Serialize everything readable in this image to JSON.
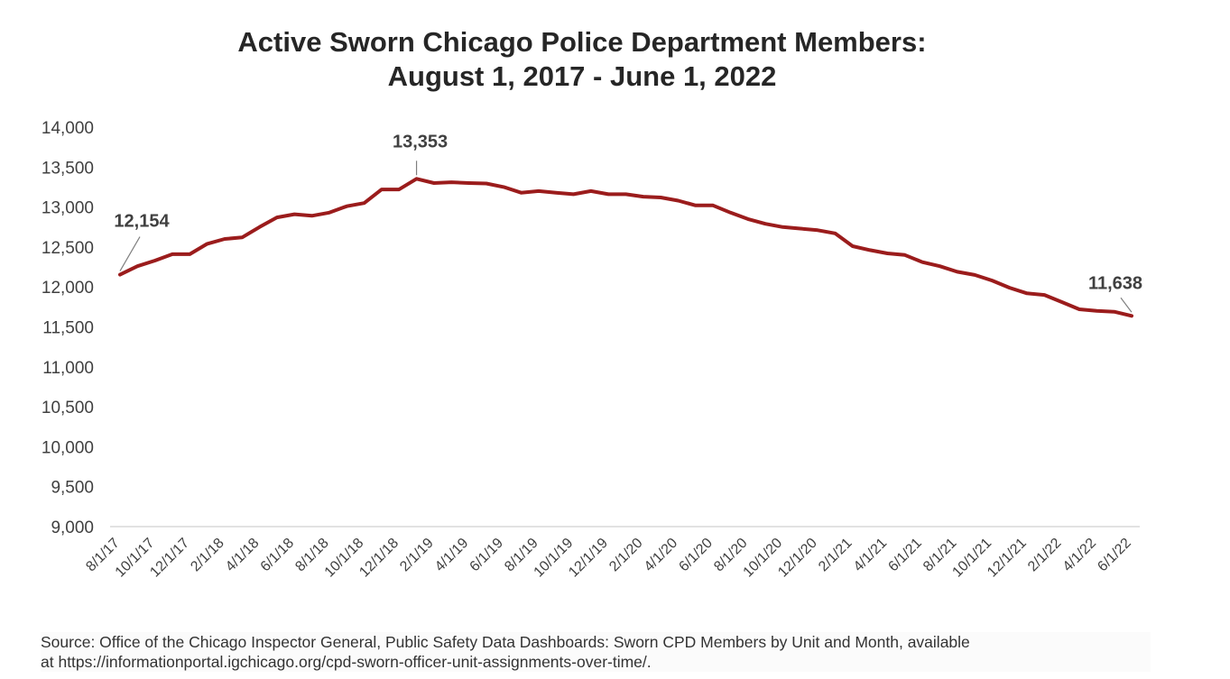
{
  "chart_data": {
    "type": "line",
    "title": "Active Sworn Chicago Police Department Members:",
    "subtitle": "August 1, 2017 - June 1, 2022",
    "xlabel": "",
    "ylabel": "",
    "ylim": [
      9000,
      14000
    ],
    "yticks": [
      "9,000",
      "9,500",
      "10,000",
      "10,500",
      "11,000",
      "11,500",
      "12,000",
      "12,500",
      "13,000",
      "13,500",
      "14,000"
    ],
    "ytick_values": [
      9000,
      9500,
      10000,
      10500,
      11000,
      11500,
      12000,
      12500,
      13000,
      13500,
      14000
    ],
    "xtick_labels": [
      "8/1/17",
      "10/1/17",
      "12/1/17",
      "2/1/18",
      "4/1/18",
      "6/1/18",
      "8/1/18",
      "10/1/18",
      "12/1/18",
      "2/1/19",
      "4/1/19",
      "6/1/19",
      "8/1/19",
      "10/1/19",
      "12/1/19",
      "2/1/20",
      "4/1/20",
      "6/1/20",
      "8/1/20",
      "10/1/20",
      "12/1/20",
      "2/1/21",
      "4/1/21",
      "6/1/21",
      "8/1/21",
      "10/1/21",
      "12/1/21",
      "2/1/22",
      "4/1/22",
      "6/1/22"
    ],
    "x": [
      "8/1/17",
      "9/1/17",
      "10/1/17",
      "11/1/17",
      "12/1/17",
      "1/1/18",
      "2/1/18",
      "3/1/18",
      "4/1/18",
      "5/1/18",
      "6/1/18",
      "7/1/18",
      "8/1/18",
      "9/1/18",
      "10/1/18",
      "11/1/18",
      "12/1/18",
      "1/1/19",
      "2/1/19",
      "3/1/19",
      "4/1/19",
      "5/1/19",
      "6/1/19",
      "7/1/19",
      "8/1/19",
      "9/1/19",
      "10/1/19",
      "11/1/19",
      "12/1/19",
      "1/1/20",
      "2/1/20",
      "3/1/20",
      "4/1/20",
      "5/1/20",
      "6/1/20",
      "7/1/20",
      "8/1/20",
      "9/1/20",
      "10/1/20",
      "11/1/20",
      "12/1/20",
      "1/1/21",
      "2/1/21",
      "3/1/21",
      "4/1/21",
      "5/1/21",
      "6/1/21",
      "7/1/21",
      "8/1/21",
      "9/1/21",
      "10/1/21",
      "11/1/21",
      "12/1/21",
      "1/1/22",
      "2/1/22",
      "3/1/22",
      "4/1/22",
      "5/1/22",
      "6/1/22"
    ],
    "series": [
      {
        "values": [
          12154,
          12260,
          12330,
          12410,
          12410,
          12540,
          12600,
          12620,
          12750,
          12870,
          12910,
          12890,
          12930,
          13010,
          13050,
          13220,
          13220,
          13353,
          13300,
          13310,
          13300,
          13295,
          13250,
          13180,
          13200,
          13180,
          13160,
          13200,
          13160,
          13160,
          13130,
          13120,
          13080,
          13020,
          13020,
          12930,
          12850,
          12790,
          12750,
          12730,
          12710,
          12670,
          12510,
          12460,
          12420,
          12400,
          12310,
          12260,
          12190,
          12150,
          12080,
          11990,
          11920,
          11900,
          11810,
          11720,
          11700,
          11690,
          11638
        ],
        "color": "#9b1c1c"
      }
    ],
    "data_labels": [
      {
        "text": "12,154",
        "index": 0
      },
      {
        "text": "13,353",
        "index": 17
      },
      {
        "text": "11,638",
        "index": 58
      }
    ],
    "grid": false,
    "legend": "none"
  },
  "source": {
    "line1": "Source: Office of the Chicago Inspector General, Public Safety Data Dashboards: Sworn CPD Members by Unit and Month, available",
    "line2": "at https://informationportal.igchicago.org/cpd-sworn-officer-unit-assignments-over-time/."
  }
}
